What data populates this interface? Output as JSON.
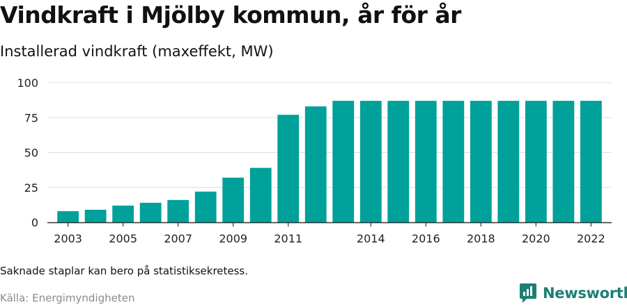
{
  "header": {
    "title": "Vindkraft i Mjölby kommun, år för år",
    "subtitle": "Installerad vindkraft (maxeffekt, MW)"
  },
  "footer": {
    "note": "Saknade staplar kan bero på statistiksekretess.",
    "source": "Källa: Energimyndigheten",
    "brand": "Newsworthy"
  },
  "colors": {
    "bar": "#00a19a",
    "grid": "#dddddd",
    "axis": "#333333",
    "brand": "#1b7f73"
  },
  "icons": {
    "brand_logo": "newsworthy-logo-icon"
  },
  "chart_data": {
    "type": "bar",
    "categories": [
      "2003",
      "2004",
      "2005",
      "2006",
      "2007",
      "2008",
      "2009",
      "2010",
      "2011",
      "2012",
      "2013",
      "2014",
      "2015",
      "2016",
      "2017",
      "2018",
      "2019",
      "2020",
      "2021",
      "2022"
    ],
    "values": [
      8,
      9,
      12,
      14,
      16,
      22,
      32,
      39,
      77,
      83,
      87,
      87,
      87,
      87,
      87,
      87,
      87,
      87,
      87,
      87
    ],
    "tick_labels": [
      "2003",
      "2005",
      "2007",
      "2009",
      "2011",
      "2014",
      "2016",
      "2018",
      "2020",
      "2022"
    ],
    "yticks": [
      0,
      25,
      50,
      75,
      100
    ],
    "ylim": [
      0,
      100
    ],
    "grid": true,
    "legend": "none"
  }
}
